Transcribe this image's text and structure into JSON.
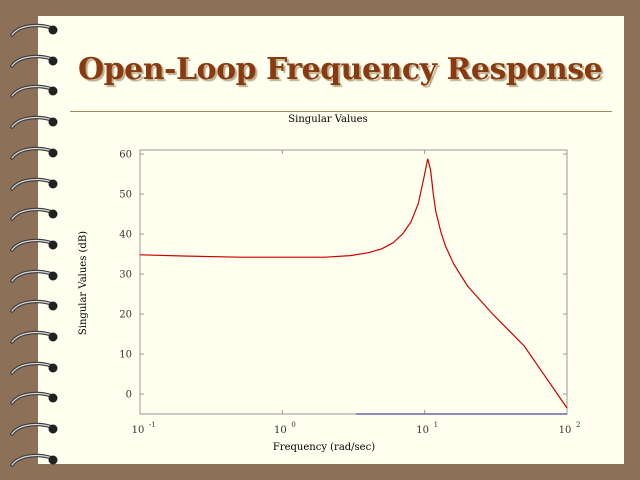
{
  "slide": {
    "title": "Open-Loop Frequency Response",
    "background_color": "#fffff0",
    "frame_color": "#8c7058",
    "title_color": "#8a3a10"
  },
  "chart_data": {
    "type": "line",
    "title": "Singular Values",
    "xlabel": "Frequency (rad/sec)",
    "ylabel": "Singular Values (dB)",
    "xscale": "log",
    "xlim": [
      0.1,
      100
    ],
    "ylim": [
      -5,
      61
    ],
    "yticks": [
      0,
      10,
      20,
      30,
      40,
      50,
      60
    ],
    "xticks": [
      {
        "base": "10",
        "exp": "-1"
      },
      {
        "base": "10",
        "exp": "0"
      },
      {
        "base": "10",
        "exp": "1"
      },
      {
        "base": "10",
        "exp": "2"
      }
    ],
    "grid": false,
    "series": [
      {
        "color": "#cc0000",
        "x": [
          0.1,
          0.2,
          0.5,
          1,
          2,
          3,
          4,
          5,
          6,
          7,
          8,
          9,
          10,
          10.5,
          11,
          11.5,
          12,
          13,
          14,
          16,
          20,
          30,
          50,
          100
        ],
        "y": [
          34.8,
          34.5,
          34.2,
          34.2,
          34.2,
          34.6,
          35.3,
          36.3,
          37.8,
          40.0,
          43.0,
          47.5,
          55.0,
          58.8,
          56.0,
          50.0,
          45.5,
          40.5,
          37.0,
          32.5,
          27.0,
          20.0,
          12.0,
          -3.5
        ]
      },
      {
        "color": "#6666aa",
        "x": [
          3.3,
          100
        ],
        "y": [
          -5,
          -5
        ]
      }
    ]
  }
}
